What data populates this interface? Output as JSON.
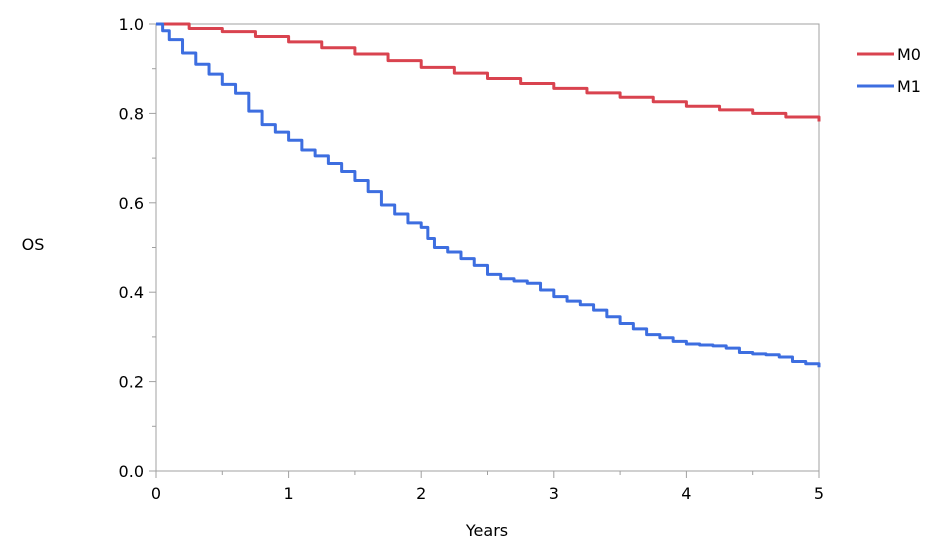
{
  "chart_data": {
    "type": "line",
    "title": "",
    "xlabel": "Years",
    "ylabel": "OS",
    "xlim": [
      0,
      5
    ],
    "ylim": [
      0.0,
      1.0
    ],
    "x_ticks": [
      "0",
      "1",
      "2",
      "3",
      "4",
      "5"
    ],
    "y_ticks": [
      "0.0",
      "0.2",
      "0.4",
      "0.6",
      "0.8",
      "1.0"
    ],
    "grid": false,
    "legend_position": "top-right",
    "series": [
      {
        "name": "M0",
        "color": "#d9434f",
        "x": [
          0,
          0.25,
          0.5,
          0.75,
          1.0,
          1.25,
          1.5,
          1.75,
          2.0,
          2.25,
          2.5,
          2.75,
          3.0,
          3.25,
          3.5,
          3.75,
          4.0,
          4.25,
          4.5,
          4.75,
          5.0
        ],
        "y": [
          1.0,
          0.99,
          0.983,
          0.972,
          0.96,
          0.947,
          0.933,
          0.918,
          0.903,
          0.89,
          0.878,
          0.867,
          0.856,
          0.846,
          0.836,
          0.826,
          0.816,
          0.808,
          0.8,
          0.792,
          0.782
        ]
      },
      {
        "name": "M1",
        "color": "#3d6ee0",
        "x": [
          0,
          0.05,
          0.1,
          0.2,
          0.3,
          0.4,
          0.5,
          0.6,
          0.7,
          0.8,
          0.9,
          1.0,
          1.1,
          1.2,
          1.3,
          1.4,
          1.5,
          1.6,
          1.7,
          1.8,
          1.9,
          2.0,
          2.05,
          2.1,
          2.2,
          2.3,
          2.4,
          2.5,
          2.6,
          2.7,
          2.8,
          2.9,
          3.0,
          3.1,
          3.2,
          3.3,
          3.4,
          3.5,
          3.6,
          3.7,
          3.8,
          3.9,
          4.0,
          4.1,
          4.2,
          4.3,
          4.4,
          4.5,
          4.6,
          4.7,
          4.8,
          4.9,
          5.0
        ],
        "y": [
          1.0,
          0.985,
          0.965,
          0.935,
          0.91,
          0.888,
          0.865,
          0.845,
          0.805,
          0.775,
          0.758,
          0.74,
          0.718,
          0.705,
          0.688,
          0.67,
          0.65,
          0.625,
          0.595,
          0.575,
          0.555,
          0.545,
          0.52,
          0.5,
          0.49,
          0.475,
          0.46,
          0.44,
          0.43,
          0.425,
          0.42,
          0.405,
          0.39,
          0.38,
          0.372,
          0.36,
          0.345,
          0.33,
          0.318,
          0.305,
          0.298,
          0.29,
          0.284,
          0.282,
          0.28,
          0.275,
          0.265,
          0.262,
          0.26,
          0.255,
          0.245,
          0.24,
          0.232
        ]
      }
    ]
  }
}
